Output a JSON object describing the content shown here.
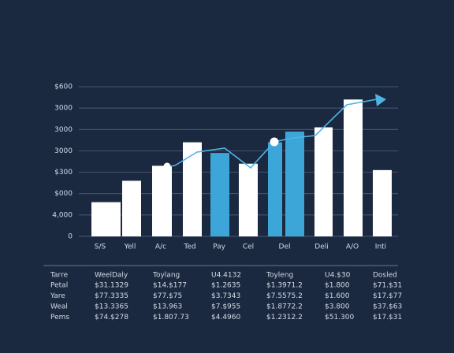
{
  "chart_data": {
    "type": "bar",
    "categories": [
      "S/S",
      "Yell",
      "A/c",
      "Ted",
      "Pay",
      "Cel",
      null,
      "Del",
      "Deli",
      "A/O",
      "Inti"
    ],
    "values": [
      1.6,
      2.6,
      3.3,
      4.4,
      3.9,
      3.4,
      4.4,
      4.9,
      5.1,
      6.4,
      3.1
    ],
    "colors": [
      "#ffffff",
      "#ffffff",
      "#ffffff",
      "#ffffff",
      "#3da6d8",
      "#ffffff",
      "#3da6d8",
      "#3da6d8",
      "#ffffff",
      "#ffffff",
      "#ffffff"
    ],
    "ylim": [
      0,
      7
    ],
    "yticks": [
      {
        "value": 0,
        "label": "0"
      },
      {
        "value": 1,
        "label": "4,000"
      },
      {
        "value": 2,
        "label": "$000"
      },
      {
        "value": 3,
        "label": "$300"
      },
      {
        "value": 4,
        "label": "3000"
      },
      {
        "value": 5,
        "label": "3000"
      },
      {
        "value": 6,
        "label": "3000"
      },
      {
        "value": 7,
        "label": "$600"
      }
    ],
    "grid": true
  },
  "table": {
    "header": [
      "Tarre",
      "WeelDaly",
      "Toylang",
      "U4.4132",
      "Toyleng",
      "U4.$30",
      "Dosled"
    ],
    "rows": [
      [
        "Petal",
        "$31.1329",
        "$14.$177",
        "$1.2635",
        "$1.3971.2",
        "$1.800",
        "$71.$31"
      ],
      [
        "Yare",
        "$77.3335",
        "$77.$75",
        "$3.7343",
        "$7.5575.2",
        "$1.600",
        "$17.$77"
      ],
      [
        "Weal",
        "$13.3365",
        "$13.963",
        "$7.$955",
        "$1.8772.2",
        "$3.800",
        "$37.$63"
      ],
      [
        "Pems",
        "$74.$278",
        "$1.807.73",
        "$4.4960",
        "$1.2312.2",
        "$51.300",
        "$17.$31"
      ]
    ]
  }
}
